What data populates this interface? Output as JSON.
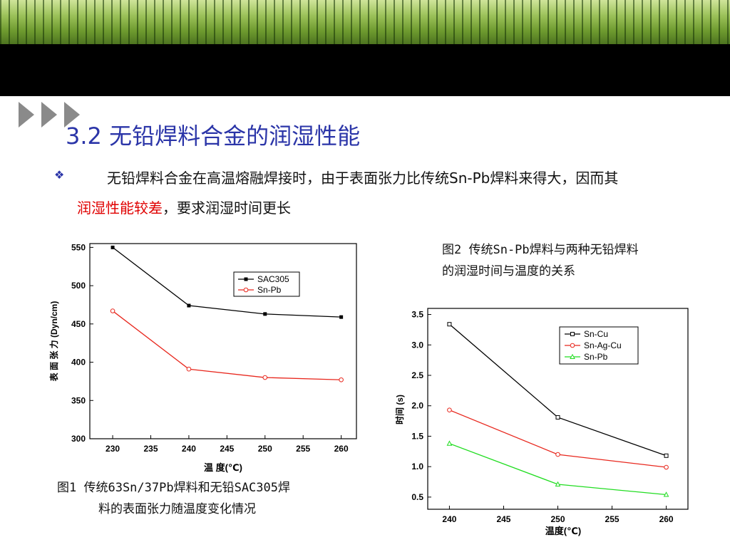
{
  "header": {
    "icon": "triple-chevron-right-icon"
  },
  "slide": {
    "title": "3.2 无铅焊料合金的润湿性能",
    "bullet_icon": "diamond-bullet-icon",
    "para_part1": "无铅焊料合金在高温熔融焊接时，由于表面张力比传统Sn-Pb焊料来得大，因而其",
    "para_highlight": "润湿性能较差",
    "para_part2": "，要求润湿时间更长",
    "highlight_color": "#e00000"
  },
  "figure1": {
    "caption_line1": "图1  传统63Sn/37Pb焊料和无铅SAC305焊",
    "caption_line2": "料的表面张力随温度变化情况"
  },
  "figure2": {
    "caption_line1": "图2  传统Sn-Pb焊料与两种无铅焊料",
    "caption_line2": "的润湿时间与温度的关系"
  },
  "chart_data": [
    {
      "type": "line",
      "title": "",
      "xlabel": "温    度(℃)",
      "ylabel": "表  面  张  力 (Dyn/cm)",
      "xlim": [
        227,
        262
      ],
      "ylim": [
        300,
        555
      ],
      "xticks": [
        230,
        235,
        240,
        245,
        250,
        255,
        260
      ],
      "yticks": [
        300,
        350,
        400,
        450,
        500,
        550
      ],
      "grid": false,
      "legend_position": "top-right",
      "series": [
        {
          "name": "SAC305",
          "color": "#000000",
          "marker": "square-filled",
          "x": [
            230,
            240,
            250,
            260
          ],
          "y": [
            550,
            474,
            463,
            459
          ]
        },
        {
          "name": "Sn-Pb",
          "color": "#e8281e",
          "marker": "circle-open",
          "x": [
            230,
            240,
            250,
            260
          ],
          "y": [
            467,
            391,
            380,
            377
          ]
        }
      ]
    },
    {
      "type": "line",
      "title": "",
      "xlabel": "温度(℃)",
      "ylabel": "时间 (s)",
      "xlim": [
        238,
        262
      ],
      "ylim": [
        0.3,
        3.6
      ],
      "xticks": [
        240,
        245,
        250,
        255,
        260
      ],
      "yticks": [
        0.5,
        1.0,
        1.5,
        2.0,
        2.5,
        3.0,
        3.5
      ],
      "grid": false,
      "legend_position": "top-right",
      "series": [
        {
          "name": "Sn-Cu",
          "color": "#000000",
          "marker": "square-open",
          "x": [
            240,
            250,
            260
          ],
          "y": [
            3.34,
            1.81,
            1.18
          ]
        },
        {
          "name": "Sn-Ag-Cu",
          "color": "#e8281e",
          "marker": "circle-open",
          "x": [
            240,
            250,
            260
          ],
          "y": [
            1.93,
            1.2,
            0.99
          ]
        },
        {
          "name": "Sn-Pb",
          "color": "#22dd22",
          "marker": "triangle-open",
          "x": [
            240,
            250,
            260
          ],
          "y": [
            1.38,
            0.71,
            0.54
          ]
        }
      ]
    }
  ]
}
